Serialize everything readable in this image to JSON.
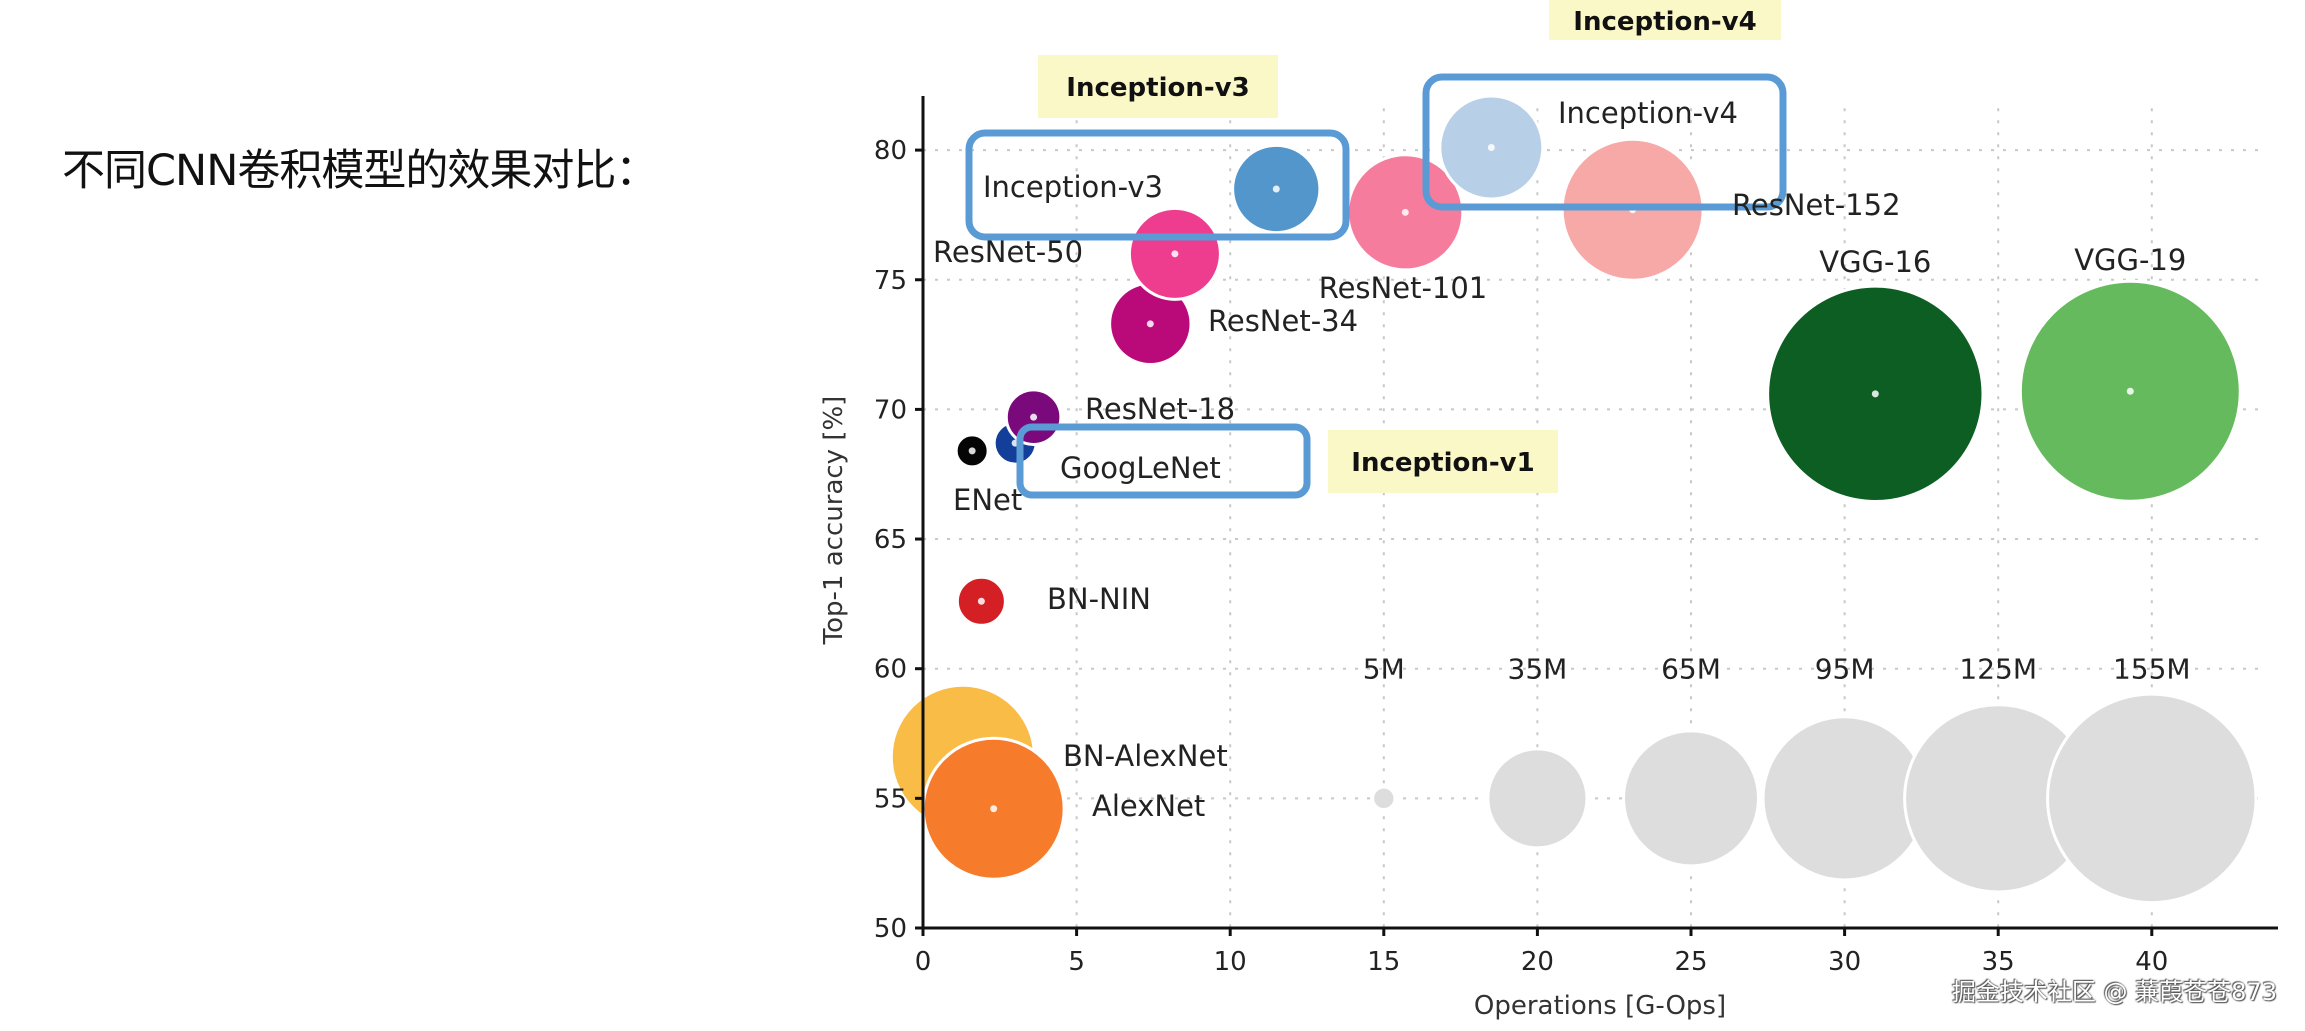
{
  "page": {
    "title": "不同CNN卷积模型的效果对比：",
    "watermark": "掘金技术社区 @ 蒹葭苍苍873"
  },
  "chart_data": {
    "type": "scatter",
    "subtype": "bubble",
    "title": "",
    "xlabel": "Operations [G-Ops]",
    "ylabel": "Top-1 accuracy [%]",
    "xlim": [
      0,
      43.5
    ],
    "ylim": [
      50,
      82
    ],
    "xticks": [
      0,
      5,
      10,
      15,
      20,
      25,
      30,
      35,
      40
    ],
    "yticks": [
      50,
      55,
      60,
      65,
      70,
      75,
      80
    ],
    "grid": true,
    "bubble_size_encodes": "parameters (millions)",
    "points": [
      {
        "name": "BN-AlexNet",
        "x": 1.3,
        "y": 56.6,
        "params_m": 62,
        "color": "#f9bc46",
        "label_pos": "right"
      },
      {
        "name": "AlexNet",
        "x": 2.3,
        "y": 54.6,
        "params_m": 60,
        "color": "#f67b2b",
        "label_pos": "right"
      },
      {
        "name": "BN-NIN",
        "x": 1.9,
        "y": 62.6,
        "params_m": 7,
        "color": "#d41f25",
        "label_pos": "right"
      },
      {
        "name": "ENet",
        "x": 1.6,
        "y": 68.4,
        "params_m": 4,
        "color": "#050505",
        "label_pos": "below"
      },
      {
        "name": "GoogLeNet",
        "x": 3.0,
        "y": 68.7,
        "params_m": 6,
        "color": "#133f9a",
        "label_pos": "right"
      },
      {
        "name": "ResNet-18",
        "x": 3.6,
        "y": 69.7,
        "params_m": 9,
        "color": "#7a0a7c",
        "label_pos": "right"
      },
      {
        "name": "ResNet-34",
        "x": 7.4,
        "y": 73.3,
        "params_m": 20,
        "color": "#ba0a7a",
        "label_pos": "right"
      },
      {
        "name": "ResNet-50",
        "x": 8.2,
        "y": 76.0,
        "params_m": 25,
        "color": "#ee3c8e",
        "label_pos": "left"
      },
      {
        "name": "Inception-v3",
        "x": 11.5,
        "y": 78.5,
        "params_m": 23,
        "color": "#5296cb",
        "label_pos": "left"
      },
      {
        "name": "ResNet-101",
        "x": 15.7,
        "y": 77.6,
        "params_m": 40,
        "color": "#f57c9c",
        "label_pos": "below"
      },
      {
        "name": "Inception-v4",
        "x": 18.5,
        "y": 80.1,
        "params_m": 32,
        "color": "#b8cfe8",
        "label_pos": "right"
      },
      {
        "name": "ResNet-152",
        "x": 23.1,
        "y": 77.7,
        "params_m": 60,
        "color": "#f7a9a8",
        "label_pos": "right"
      },
      {
        "name": "VGG-16",
        "x": 31.0,
        "y": 70.6,
        "params_m": 140,
        "color": "#0c5e23",
        "label_pos": "above"
      },
      {
        "name": "VGG-19",
        "x": 39.3,
        "y": 70.7,
        "params_m": 146,
        "color": "#66ba5e",
        "label_pos": "above"
      }
    ],
    "size_reference": {
      "y": 55,
      "color": "#dddddd",
      "items": [
        {
          "label": "5M",
          "x": 15,
          "params_m": 5
        },
        {
          "label": "35M",
          "x": 20,
          "params_m": 35
        },
        {
          "label": "65M",
          "x": 25,
          "params_m": 65
        },
        {
          "label": "95M",
          "x": 30,
          "params_m": 95
        },
        {
          "label": "125M",
          "x": 35,
          "params_m": 125
        },
        {
          "label": "155M",
          "x": 40,
          "params_m": 155
        }
      ]
    },
    "annotations": {
      "highlight_color": "#5b9bd5",
      "tag_color": "#fbf8c8",
      "boxes": [
        {
          "target": "Inception-v3",
          "tag": "Inception-v3"
        },
        {
          "target": "Inception-v4",
          "tag": "Inception-v4"
        },
        {
          "target": "GoogLeNet",
          "tag": "Inception-v1"
        }
      ]
    }
  }
}
